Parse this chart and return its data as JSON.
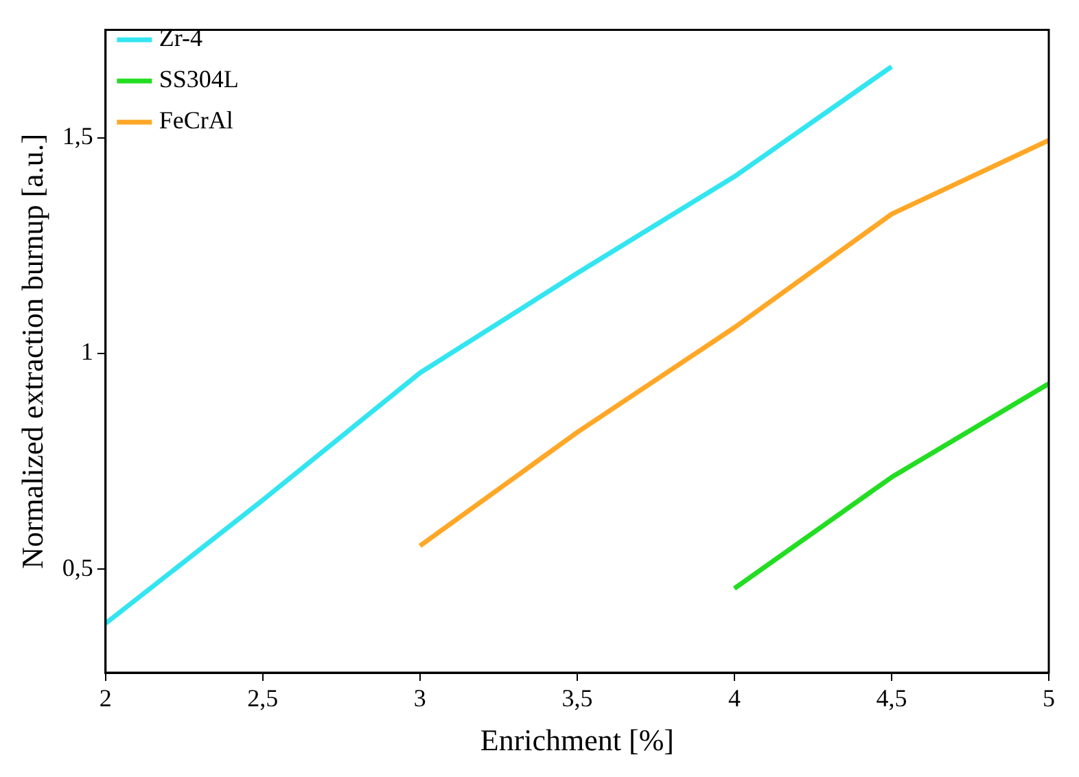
{
  "chart_data": {
    "type": "line",
    "xlabel": "Enrichment [%]",
    "ylabel": "Normalized extraction burnup [a.u.]",
    "xlim": [
      2,
      5
    ],
    "xticks": [
      2,
      {
        "value": 2.5,
        "label": "2,5"
      },
      3,
      {
        "value": 3.5,
        "label": "3,5"
      },
      4,
      {
        "value": 4.5,
        "label": "4,5"
      },
      5
    ],
    "ylim": [
      0.26,
      1.75
    ],
    "yticks": [
      {
        "value": 0.5,
        "label": "0,5"
      },
      1,
      {
        "value": 1.5,
        "label": "1,5"
      }
    ],
    "grid": false,
    "legend": "top left",
    "marker": "none",
    "line_style": "solid",
    "series": [
      {
        "name": "Zr-4",
        "color": "#33e5f0",
        "x": [
          2,
          2.5,
          3,
          3.5,
          4,
          4.5
        ],
        "values": [
          0.374,
          0.66,
          0.955,
          1.186,
          1.41,
          1.665
        ]
      },
      {
        "name": "SS304L",
        "color": "#22dd22",
        "x": [
          4,
          4.5,
          5
        ],
        "values": [
          0.455,
          0.713,
          0.93
        ]
      },
      {
        "name": "FeCrAl",
        "color": "#ffa726",
        "x": [
          3,
          3.5,
          4,
          4.5,
          5
        ],
        "values": [
          0.554,
          0.817,
          1.06,
          1.323,
          1.494
        ]
      }
    ]
  }
}
